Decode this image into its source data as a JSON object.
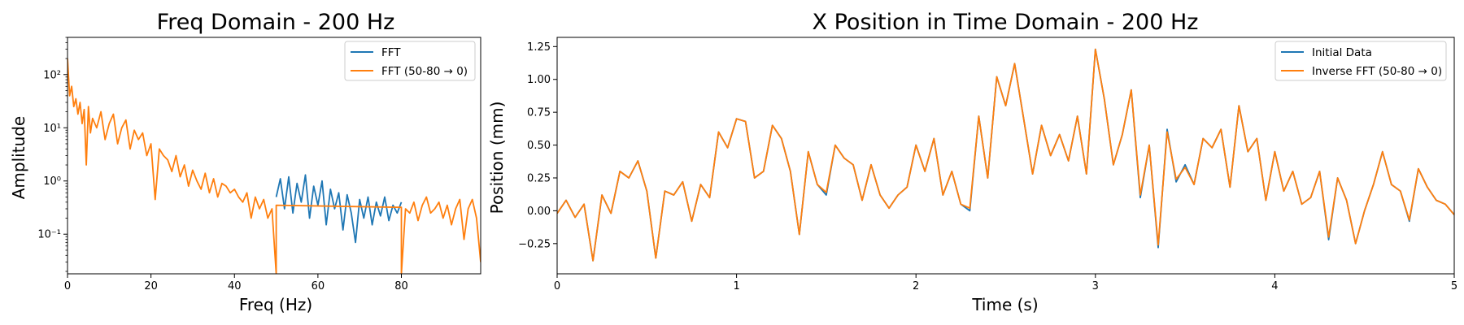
{
  "colors": {
    "blue": "#1f77b4",
    "orange": "#ff7f0e",
    "axis": "#000000",
    "bg": "#ffffff"
  },
  "chart_data": [
    {
      "type": "line",
      "title": "Freq Domain - 200 Hz",
      "xlabel": "Freq (Hz)",
      "ylabel": "Amplitude",
      "yscale": "log",
      "xlim": [
        0,
        99
      ],
      "ylim": [
        0.018,
        500
      ],
      "xticks": [
        0,
        20,
        40,
        60,
        80
      ],
      "xtick_labels": [
        "0",
        "20",
        "40",
        "60",
        "80"
      ],
      "yticks": [
        0.1,
        1,
        10,
        100
      ],
      "ytick_labels": [
        "10⁻¹",
        "10⁰",
        "10¹",
        "10²"
      ],
      "grid": false,
      "legend_position": "upper right",
      "legend": [
        "FFT",
        "FFT (50-80 → 0)"
      ],
      "series": [
        {
          "name": "FFT",
          "color": "#1f77b4",
          "x": [
            50,
            51,
            52,
            53,
            54,
            55,
            56,
            57,
            58,
            59,
            60,
            61,
            62,
            63,
            64,
            65,
            66,
            67,
            68,
            69,
            70,
            71,
            72,
            73,
            74,
            75,
            76,
            77,
            78,
            79,
            80
          ],
          "y": [
            0.5,
            1.1,
            0.3,
            1.2,
            0.25,
            0.9,
            0.4,
            1.3,
            0.2,
            0.8,
            0.35,
            1.0,
            0.15,
            0.7,
            0.3,
            0.6,
            0.12,
            0.55,
            0.25,
            0.07,
            0.45,
            0.2,
            0.5,
            0.15,
            0.4,
            0.22,
            0.5,
            0.18,
            0.35,
            0.25,
            0.4
          ]
        },
        {
          "name": "FFT (50-80 → 0)",
          "color": "#ff7f0e",
          "x": [
            0,
            0.5,
            1,
            1.5,
            2,
            2.5,
            3,
            3.5,
            4,
            4.5,
            5,
            5.5,
            6,
            7,
            8,
            9,
            10,
            11,
            12,
            13,
            14,
            15,
            16,
            17,
            18,
            19,
            20,
            21,
            22,
            23,
            24,
            25,
            26,
            27,
            28,
            29,
            30,
            31,
            32,
            33,
            34,
            35,
            36,
            37,
            38,
            39,
            40,
            41,
            42,
            43,
            44,
            45,
            46,
            47,
            48,
            49,
            50,
            50,
            80,
            80,
            81,
            82,
            83,
            84,
            85,
            86,
            87,
            88,
            89,
            90,
            91,
            92,
            93,
            94,
            95,
            96,
            97,
            98,
            99
          ],
          "y": [
            200,
            40,
            60,
            25,
            35,
            18,
            30,
            12,
            22,
            2,
            25,
            8,
            15,
            10,
            20,
            6,
            12,
            18,
            5,
            10,
            14,
            4,
            9,
            6,
            8,
            3,
            5,
            0.45,
            4,
            3,
            2.5,
            1.5,
            3,
            1.2,
            2,
            0.8,
            1.6,
            1.0,
            0.7,
            1.4,
            0.6,
            1.1,
            0.5,
            0.9,
            0.8,
            0.6,
            0.7,
            0.5,
            0.4,
            0.6,
            0.2,
            0.5,
            0.3,
            0.45,
            0.2,
            0.3,
            0.005,
            0.35,
            0.32,
            0.005,
            0.3,
            0.25,
            0.4,
            0.18,
            0.35,
            0.5,
            0.25,
            0.3,
            0.4,
            0.2,
            0.35,
            0.15,
            0.3,
            0.45,
            0.08,
            0.3,
            0.45,
            0.2,
            0.03
          ]
        }
      ]
    },
    {
      "type": "line",
      "title": "X Position in Time Domain - 200 Hz",
      "xlabel": "Time (s)",
      "ylabel": "Position (mm)",
      "xlim": [
        0,
        5
      ],
      "ylim": [
        -0.48,
        1.32
      ],
      "xticks": [
        0,
        1,
        2,
        3,
        4,
        5
      ],
      "xtick_labels": [
        "0",
        "1",
        "2",
        "3",
        "4",
        "5"
      ],
      "yticks": [
        -0.25,
        0,
        0.25,
        0.5,
        0.75,
        1.0,
        1.25
      ],
      "ytick_labels": [
        "−0.25",
        "0.00",
        "0.25",
        "0.50",
        "0.75",
        "1.00",
        "1.25"
      ],
      "grid": false,
      "legend_position": "upper right",
      "legend": [
        "Initial Data",
        "Inverse FFT (50-80 → 0)"
      ],
      "series": [
        {
          "name": "Initial Data",
          "color": "#1f77b4",
          "x": [
            0,
            0.05,
            0.1,
            0.15,
            0.2,
            0.25,
            0.3,
            0.35,
            0.4,
            0.45,
            0.5,
            0.55,
            0.6,
            0.65,
            0.7,
            0.75,
            0.8,
            0.85,
            0.9,
            0.95,
            1.0,
            1.05,
            1.1,
            1.15,
            1.2,
            1.25,
            1.3,
            1.35,
            1.4,
            1.45,
            1.5,
            1.55,
            1.6,
            1.65,
            1.7,
            1.75,
            1.8,
            1.85,
            1.9,
            1.95,
            2.0,
            2.05,
            2.1,
            2.15,
            2.2,
            2.25,
            2.3,
            2.35,
            2.4,
            2.45,
            2.5,
            2.55,
            2.6,
            2.65,
            2.7,
            2.75,
            2.8,
            2.85,
            2.9,
            2.95,
            3.0,
            3.05,
            3.1,
            3.15,
            3.2,
            3.25,
            3.3,
            3.35,
            3.4,
            3.45,
            3.5,
            3.55,
            3.6,
            3.65,
            3.7,
            3.75,
            3.8,
            3.85,
            3.9,
            3.95,
            4.0,
            4.05,
            4.1,
            4.15,
            4.2,
            4.25,
            4.3,
            4.35,
            4.4,
            4.45,
            4.5,
            4.55,
            4.6,
            4.65,
            4.7,
            4.75,
            4.8,
            4.85,
            4.9,
            4.95,
            5.0
          ],
          "y": [
            -0.02,
            0.08,
            -0.05,
            0.05,
            -0.38,
            0.12,
            -0.02,
            0.3,
            0.25,
            0.38,
            0.15,
            -0.36,
            0.15,
            0.12,
            0.22,
            -0.08,
            0.2,
            0.1,
            0.6,
            0.48,
            0.7,
            0.68,
            0.25,
            0.3,
            0.65,
            0.55,
            0.3,
            -0.18,
            0.45,
            0.2,
            0.12,
            0.5,
            0.4,
            0.35,
            0.08,
            0.35,
            0.12,
            0.02,
            0.12,
            0.18,
            0.5,
            0.3,
            0.55,
            0.12,
            0.3,
            0.05,
            0.0,
            0.72,
            0.25,
            1.02,
            0.8,
            1.12,
            0.7,
            0.28,
            0.65,
            0.42,
            0.58,
            0.38,
            0.72,
            0.28,
            1.23,
            0.85,
            0.35,
            0.58,
            0.92,
            0.1,
            0.5,
            -0.28,
            0.62,
            0.22,
            0.35,
            0.2,
            0.55,
            0.48,
            0.62,
            0.18,
            0.8,
            0.45,
            0.55,
            0.08,
            0.45,
            0.15,
            0.3,
            0.05,
            0.1,
            0.3,
            -0.22,
            0.25,
            0.08,
            -0.25,
            0.0,
            0.2,
            0.45,
            0.2,
            0.15,
            -0.08,
            0.32,
            0.18,
            0.08,
            0.05,
            -0.03
          ]
        },
        {
          "name": "Inverse FFT (50-80 → 0)",
          "color": "#ff7f0e",
          "x": [
            0,
            0.05,
            0.1,
            0.15,
            0.2,
            0.25,
            0.3,
            0.35,
            0.4,
            0.45,
            0.5,
            0.55,
            0.6,
            0.65,
            0.7,
            0.75,
            0.8,
            0.85,
            0.9,
            0.95,
            1.0,
            1.05,
            1.1,
            1.15,
            1.2,
            1.25,
            1.3,
            1.35,
            1.4,
            1.45,
            1.5,
            1.55,
            1.6,
            1.65,
            1.7,
            1.75,
            1.8,
            1.85,
            1.9,
            1.95,
            2.0,
            2.05,
            2.1,
            2.15,
            2.2,
            2.25,
            2.3,
            2.35,
            2.4,
            2.45,
            2.5,
            2.55,
            2.6,
            2.65,
            2.7,
            2.75,
            2.8,
            2.85,
            2.9,
            2.95,
            3.0,
            3.05,
            3.1,
            3.15,
            3.2,
            3.25,
            3.3,
            3.35,
            3.4,
            3.45,
            3.5,
            3.55,
            3.6,
            3.65,
            3.7,
            3.75,
            3.8,
            3.85,
            3.9,
            3.95,
            4.0,
            4.05,
            4.1,
            4.15,
            4.2,
            4.25,
            4.3,
            4.35,
            4.4,
            4.45,
            4.5,
            4.55,
            4.6,
            4.65,
            4.7,
            4.75,
            4.8,
            4.85,
            4.9,
            4.95,
            5.0
          ],
          "y": [
            -0.02,
            0.08,
            -0.05,
            0.05,
            -0.38,
            0.12,
            -0.02,
            0.3,
            0.25,
            0.38,
            0.15,
            -0.36,
            0.15,
            0.12,
            0.22,
            -0.08,
            0.2,
            0.1,
            0.6,
            0.48,
            0.7,
            0.68,
            0.25,
            0.3,
            0.65,
            0.55,
            0.3,
            -0.18,
            0.45,
            0.2,
            0.14,
            0.5,
            0.4,
            0.35,
            0.08,
            0.35,
            0.12,
            0.02,
            0.12,
            0.18,
            0.5,
            0.3,
            0.55,
            0.12,
            0.3,
            0.05,
            0.02,
            0.72,
            0.25,
            1.02,
            0.8,
            1.12,
            0.7,
            0.28,
            0.65,
            0.42,
            0.58,
            0.38,
            0.72,
            0.28,
            1.23,
            0.85,
            0.35,
            0.58,
            0.92,
            0.12,
            0.5,
            -0.26,
            0.6,
            0.24,
            0.33,
            0.2,
            0.55,
            0.48,
            0.62,
            0.18,
            0.8,
            0.45,
            0.55,
            0.08,
            0.45,
            0.15,
            0.3,
            0.05,
            0.1,
            0.3,
            -0.2,
            0.25,
            0.08,
            -0.25,
            0.0,
            0.2,
            0.45,
            0.2,
            0.15,
            -0.07,
            0.32,
            0.18,
            0.08,
            0.05,
            -0.03
          ]
        }
      ]
    }
  ]
}
